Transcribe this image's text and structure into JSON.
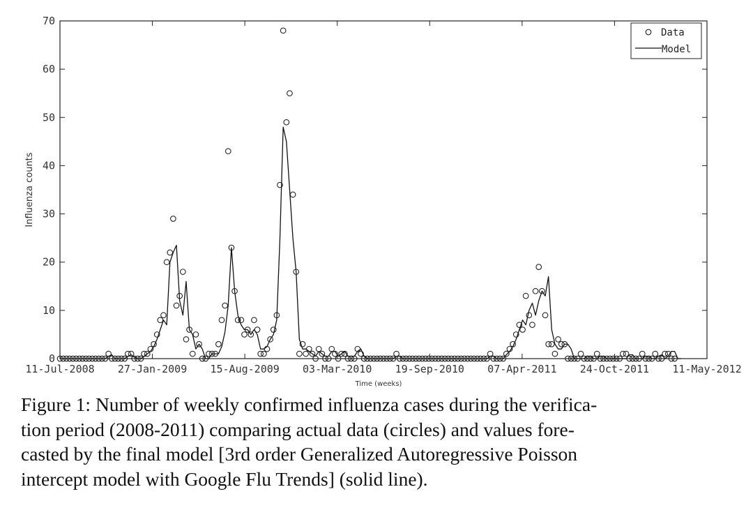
{
  "chart_data": {
    "type": "line",
    "xlabel": "Time (weeks)",
    "ylabel": "Influenza counts",
    "ylim": [
      0,
      70
    ],
    "xlim": [
      "2008-07-11",
      "2012-05-11"
    ],
    "yticks": [
      0,
      10,
      20,
      30,
      40,
      50,
      60,
      70
    ],
    "xtick_labels": [
      "11-Jul-2008",
      "27-Jan-2009",
      "15-Aug-2009",
      "03-Mar-2010",
      "19-Sep-2010",
      "07-Apr-2011",
      "24-Oct-2011",
      "11-May-2012"
    ],
    "grid": false,
    "legend_position": "top-right",
    "series": [
      {
        "name": "Data",
        "marker": "circle",
        "x_start": "2008-07-11",
        "x_step_weeks": 1,
        "values": [
          0,
          0,
          0,
          0,
          0,
          0,
          0,
          0,
          0,
          0,
          0,
          0,
          0,
          0,
          0,
          1,
          0,
          0,
          0,
          0,
          0,
          1,
          1,
          0,
          0,
          0,
          1,
          1,
          2,
          3,
          5,
          8,
          9,
          20,
          22,
          29,
          11,
          13,
          18,
          4,
          6,
          1,
          5,
          3,
          0,
          0,
          1,
          1,
          1,
          3,
          8,
          11,
          43,
          23,
          14,
          8,
          8,
          5,
          6,
          5,
          8,
          6,
          1,
          1,
          2,
          4,
          6,
          9,
          36,
          68,
          49,
          55,
          34,
          18,
          1,
          3,
          1,
          2,
          1,
          0,
          2,
          1,
          0,
          0,
          2,
          1,
          0,
          1,
          1,
          0,
          0,
          0,
          2,
          1,
          0,
          0,
          0,
          0,
          0,
          0,
          0,
          0,
          0,
          0,
          1,
          0,
          0,
          0,
          0,
          0,
          0,
          0,
          0,
          0,
          0,
          0,
          0,
          0,
          0,
          0,
          0,
          0,
          0,
          0,
          0,
          0,
          0,
          0,
          0,
          0,
          0,
          0,
          0,
          1,
          0,
          0,
          0,
          0,
          1,
          2,
          3,
          5,
          7,
          6,
          13,
          9,
          7,
          14,
          19,
          14,
          9,
          3,
          3,
          1,
          4,
          3,
          3,
          0,
          0,
          0,
          0,
          1,
          0,
          0,
          0,
          0,
          1,
          0,
          0,
          0,
          0,
          0,
          0,
          0,
          1,
          1,
          0,
          0,
          0,
          0,
          1,
          0,
          0,
          0,
          1,
          0,
          0,
          1,
          1,
          0,
          0
        ]
      },
      {
        "name": "Model",
        "marker": "line",
        "x_start": "2008-07-11",
        "x_step_weeks": 1,
        "values": [
          0,
          0,
          0,
          0,
          0,
          0,
          0,
          0,
          0,
          0,
          0,
          0,
          0,
          0,
          0,
          0.5,
          0.8,
          0,
          0,
          0,
          0,
          0.5,
          0.8,
          0.3,
          0,
          0,
          0.5,
          1,
          1.5,
          2.5,
          4,
          6,
          8,
          7,
          20,
          22,
          23.5,
          12,
          9,
          16,
          6,
          5,
          2,
          3,
          2,
          0,
          0,
          1,
          1,
          1,
          2.5,
          5.5,
          11,
          23,
          14,
          9,
          7,
          6,
          6,
          5,
          6,
          5,
          2,
          2,
          2.5,
          4,
          5,
          8,
          25,
          48,
          45,
          35,
          25,
          18,
          4,
          2,
          2,
          1.5,
          1,
          0.5,
          1.5,
          1,
          0.5,
          0.5,
          1.5,
          1.5,
          0.5,
          1,
          1.5,
          0.5,
          0.5,
          0.5,
          1.5,
          2,
          0.5,
          0,
          0,
          0,
          0,
          0,
          0,
          0,
          0,
          0,
          0.5,
          0.5,
          0,
          0,
          0,
          0,
          0,
          0,
          0,
          0,
          0,
          0,
          0,
          0,
          0,
          0,
          0,
          0,
          0,
          0,
          0,
          0,
          0,
          0,
          0,
          0,
          0,
          0,
          0,
          0.5,
          0.5,
          0,
          0,
          0,
          0.8,
          1.5,
          2.5,
          4,
          6,
          8,
          7,
          10,
          11.5,
          9,
          12,
          14,
          13,
          17,
          6,
          3,
          2,
          2,
          3,
          3,
          2,
          0,
          0,
          0,
          0,
          0.5,
          0.5,
          0,
          0,
          0.5,
          0.5,
          0,
          0,
          0,
          0,
          0,
          0,
          0,
          0.8,
          0.8,
          0,
          0,
          0,
          0.5,
          0.5,
          0,
          0,
          0.5,
          0.8,
          0,
          0.5,
          1.5,
          1.5,
          0,
          0
        ]
      }
    ]
  },
  "caption": {
    "lines": [
      "Figure 1: Number of weekly confirmed influenza cases during the verifica-",
      "tion period (2008-2011) comparing actual data (circles) and values fore-",
      "casted by the final model [3rd order Generalized Autoregressive Poisson",
      "intercept model with Google Flu Trends] (solid line)."
    ]
  },
  "colors": {
    "axis": "#222222",
    "marker": "#222222",
    "line": "#111111",
    "background": "#ffffff"
  }
}
